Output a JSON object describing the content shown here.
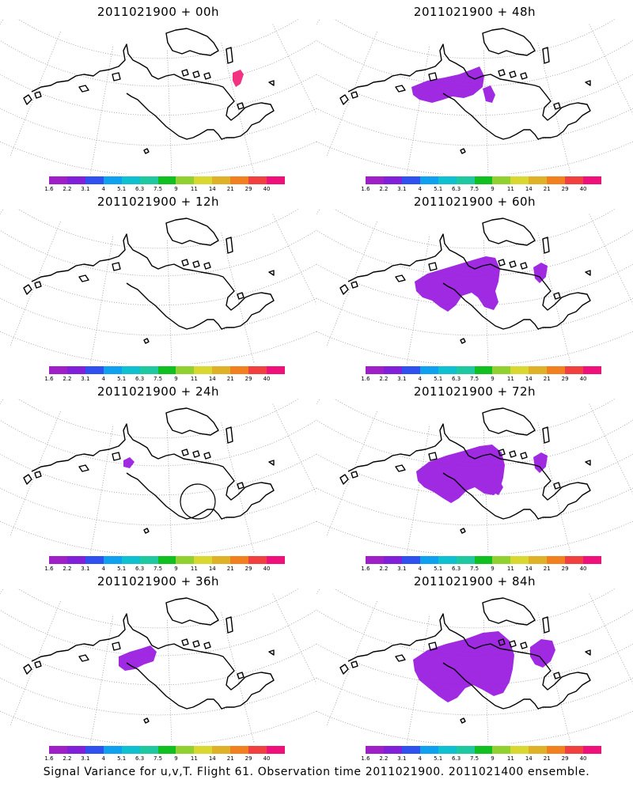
{
  "panels": [
    {
      "title": "2011021900 + 00h",
      "blobs": [
        {
          "shape": "dot-east",
          "color": "#f0287a"
        }
      ]
    },
    {
      "title": "2011021900 + 48h",
      "blobs": [
        {
          "shape": "band-small",
          "color": "#9b1fe0"
        }
      ]
    },
    {
      "title": "2011021900 + 12h",
      "blobs": []
    },
    {
      "title": "2011021900 + 60h",
      "blobs": [
        {
          "shape": "band-medium",
          "color": "#9b1fe0"
        },
        {
          "shape": "patch-east",
          "color": "#9b1fe0"
        }
      ]
    },
    {
      "title": "2011021900 + 24h",
      "blobs": [
        {
          "shape": "dot-west",
          "color": "#9b1fe0"
        }
      ],
      "circle": true
    },
    {
      "title": "2011021900 + 72h",
      "blobs": [
        {
          "shape": "band-large",
          "color": "#9b1fe0"
        },
        {
          "shape": "patch-east",
          "color": "#9b1fe0"
        }
      ]
    },
    {
      "title": "2011021900 + 36h",
      "blobs": [
        {
          "shape": "patch-alaska",
          "color": "#9b1fe0"
        }
      ]
    },
    {
      "title": "2011021900 + 84h",
      "blobs": [
        {
          "shape": "band-xlarge",
          "color": "#9b1fe0"
        },
        {
          "shape": "patch-east-large",
          "color": "#9b1fe0"
        }
      ]
    }
  ],
  "colorbar": {
    "labels": [
      "1.6",
      "2.2",
      "3.1",
      "4",
      "5.1",
      "6.3",
      "7.5",
      "9",
      "11",
      "14",
      "21",
      "29",
      "40"
    ],
    "colors": [
      "#a020c8",
      "#8020d8",
      "#3050f0",
      "#10a0f0",
      "#10c0d0",
      "#20c8a0",
      "#10c020",
      "#90d030",
      "#d8d830",
      "#e0b028",
      "#f08020",
      "#f04040",
      "#f0107a"
    ]
  },
  "footer": "Signal Variance for u,v,T. Flight 61. Observation time 2011021900. 2011021400 ensemble."
}
